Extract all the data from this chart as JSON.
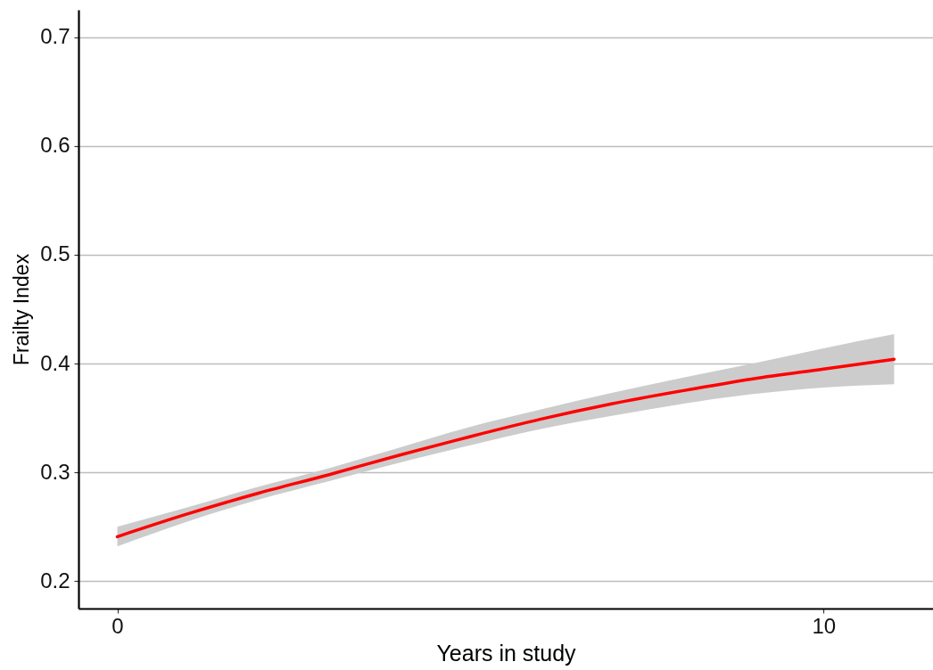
{
  "chart_data": {
    "type": "line",
    "xlabel": "Years in study",
    "ylabel": "Frailty Index",
    "x": [
      0,
      1,
      2,
      3,
      4,
      5,
      6,
      7,
      8,
      9,
      10,
      11
    ],
    "series": [
      {
        "color": "#ff0000",
        "values": [
          0.241,
          0.262,
          0.281,
          0.298,
          0.316,
          0.333,
          0.349,
          0.363,
          0.375,
          0.386,
          0.395,
          0.404
        ],
        "lower": [
          0.232,
          0.255,
          0.275,
          0.292,
          0.309,
          0.325,
          0.34,
          0.352,
          0.363,
          0.372,
          0.378,
          0.381
        ],
        "upper": [
          0.25,
          0.268,
          0.287,
          0.304,
          0.323,
          0.342,
          0.358,
          0.373,
          0.387,
          0.4,
          0.414,
          0.427
        ]
      }
    ],
    "xlim": [
      -0.55,
      11.55
    ],
    "ylim": [
      0.175,
      0.725
    ],
    "xticks": [
      0,
      10
    ],
    "yticks": [
      0.2,
      0.3,
      0.4,
      0.5,
      0.6,
      0.7
    ],
    "grid": "y"
  }
}
